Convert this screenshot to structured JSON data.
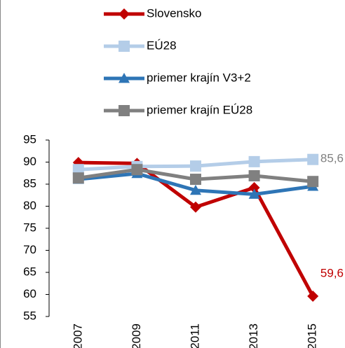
{
  "chart_data": {
    "type": "line",
    "categories": [
      "2007",
      "2009",
      "2011",
      "2013",
      "2015"
    ],
    "series": [
      {
        "name": "Slovensko",
        "color": "#c00000",
        "marker": "diamond",
        "values": [
          89.9,
          89.7,
          79.8,
          84.2,
          59.6
        ],
        "value_labels": [
          null,
          null,
          null,
          null,
          "59,6"
        ]
      },
      {
        "name": "EÚ28",
        "color": "#b4cde8",
        "marker": "square",
        "values": [
          88.3,
          89.0,
          89.1,
          90.1,
          90.6
        ]
      },
      {
        "name": "priemer krajín V3+2",
        "color": "#2e75b6",
        "marker": "triangle",
        "values": [
          86.1,
          87.4,
          83.6,
          82.7,
          84.5
        ]
      },
      {
        "name": "priemer krajín EÚ28",
        "color": "#808080",
        "marker": "square",
        "values": [
          86.4,
          88.3,
          86.1,
          86.9,
          85.6
        ],
        "value_labels": [
          null,
          null,
          null,
          null,
          "85,6"
        ]
      }
    ],
    "ylim": [
      55,
      95
    ],
    "yticks": [
      55,
      60,
      65,
      70,
      75,
      80,
      85,
      90,
      95
    ],
    "grid": false
  }
}
